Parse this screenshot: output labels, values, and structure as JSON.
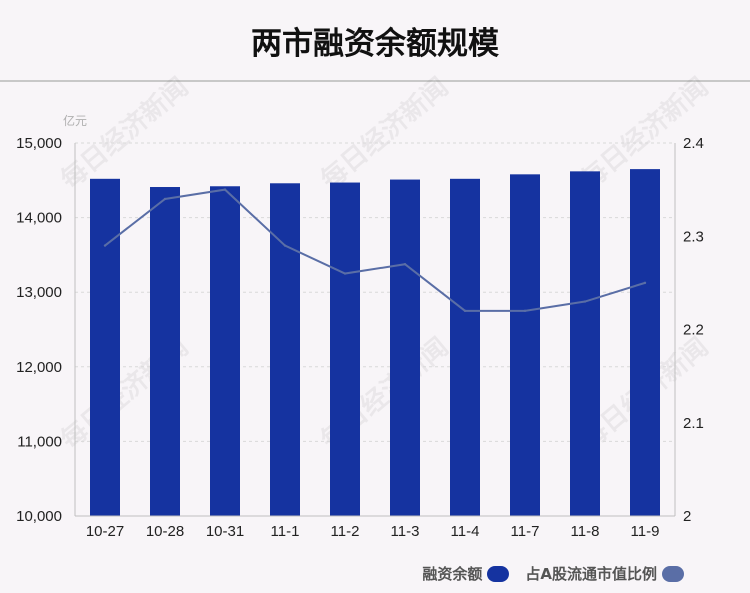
{
  "title": "两市融资余额规模",
  "unit_label": "亿元",
  "watermark": "每日经济新闻",
  "legend": [
    {
      "label": "融资余额",
      "color": "#1533a0"
    },
    {
      "label": "占A股流通市值比例",
      "color": "#5a6ea6"
    }
  ],
  "chart_data": {
    "type": "bar",
    "categories": [
      "10-27",
      "10-28",
      "10-31",
      "11-1",
      "11-2",
      "11-3",
      "11-4",
      "11-7",
      "11-8",
      "11-9"
    ],
    "series": [
      {
        "name": "融资余额",
        "type": "bar",
        "axis": "left",
        "color": "#1533a0",
        "values": [
          14520,
          14410,
          14420,
          14460,
          14470,
          14510,
          14520,
          14580,
          14620,
          14650
        ]
      },
      {
        "name": "占A股流通市值比例",
        "type": "line",
        "axis": "right",
        "color": "#5a6ea6",
        "values": [
          2.29,
          2.34,
          2.35,
          2.29,
          2.26,
          2.27,
          2.22,
          2.22,
          2.23,
          2.25
        ]
      }
    ],
    "y_left": {
      "min": 10000,
      "max": 15000,
      "ticks": [
        "10,000",
        "11,000",
        "12,000",
        "13,000",
        "14,000",
        "15,000"
      ]
    },
    "y_right": {
      "min": 2,
      "max": 2.4,
      "ticks": [
        "2",
        "2.1",
        "2.2",
        "2.3",
        "2.4"
      ]
    },
    "grid": "dashed horizontal"
  }
}
